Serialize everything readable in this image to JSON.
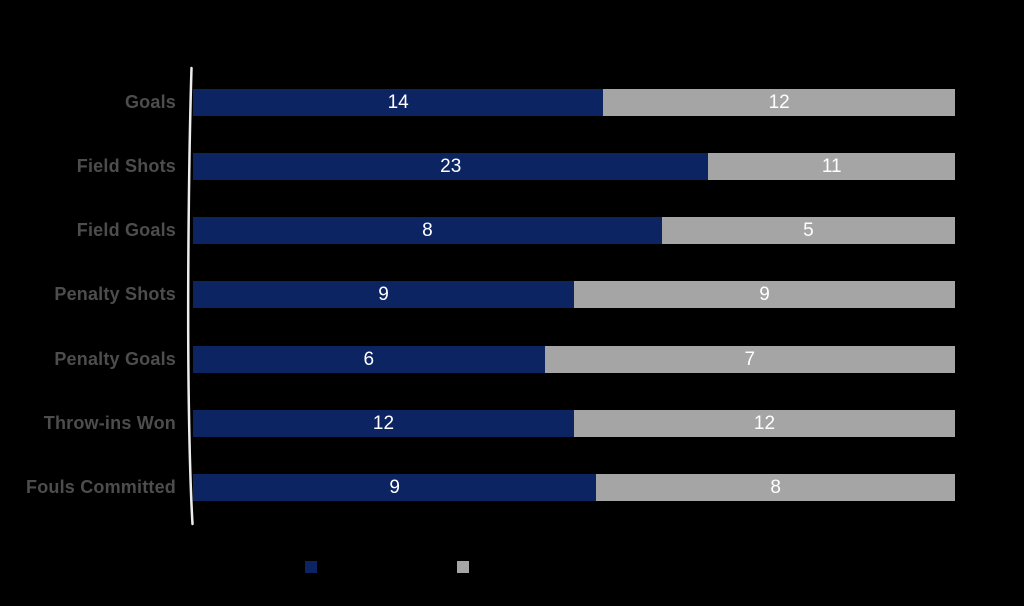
{
  "background_color": "#000000",
  "chart_data": {
    "type": "bar",
    "subtype": "horizontal-stacked-100pct",
    "title": "",
    "xlabel": "",
    "ylabel": "",
    "grid": false,
    "legend_position": "bottom",
    "legend_labels_visible": false,
    "axis_line_color": "#ededed",
    "category_label_color": "#4d4d4d",
    "value_label_color": "#ffffff",
    "value_label_position": "inside-center",
    "categories": [
      "Goals",
      "Field Shots",
      "Field Goals",
      "Penalty Shots",
      "Penalty Goals",
      "Throw-ins Won",
      "Fouls Committed"
    ],
    "series": [
      {
        "name": "",
        "color": "#0d2463",
        "values": [
          14,
          23,
          8,
          9,
          6,
          12,
          9
        ]
      },
      {
        "name": "",
        "color": "#a5a5a5",
        "values": [
          12,
          11,
          5,
          9,
          7,
          12,
          8
        ]
      }
    ]
  }
}
